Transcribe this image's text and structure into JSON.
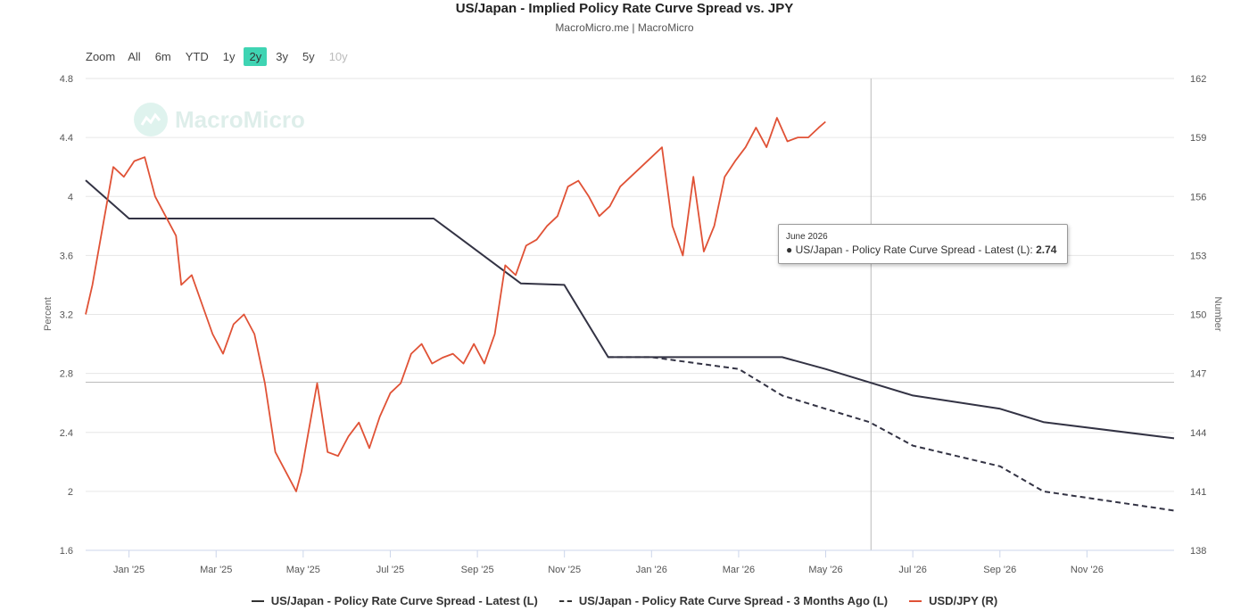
{
  "header": {
    "title": "US/Japan - Implied Policy Rate Curve Spread vs. JPY",
    "subtitle": "MacroMicro.me | MacroMicro"
  },
  "zoom": {
    "label": "Zoom",
    "buttons": [
      "All",
      "6m",
      "YTD",
      "1y",
      "2y",
      "3y",
      "5y",
      "10y"
    ],
    "active": "2y",
    "disabled": [
      "10y"
    ]
  },
  "watermark": {
    "text": "MacroMicro"
  },
  "tooltip": {
    "date": "June 2026",
    "series": "US/Japan - Policy Rate Curve Spread - Latest (L):",
    "value": "2.74"
  },
  "legend": [
    {
      "label": "US/Japan - Policy Rate Curve Spread - Latest (L)",
      "style": "solid",
      "color": "#333344"
    },
    {
      "label": "US/Japan - Policy Rate Curve Spread - 3 Months Ago (L)",
      "style": "dashed",
      "color": "#333344"
    },
    {
      "label": "USD/JPY (R)",
      "style": "solid",
      "color": "#e05236"
    }
  ],
  "chart_data": {
    "type": "line",
    "title": "US/Japan - Implied Policy Rate Curve Spread vs. JPY",
    "x_range": [
      2024.917,
      2027.0
    ],
    "x_ticks": [
      {
        "label": "Jan '25",
        "x": 2025.0
      },
      {
        "label": "Mar '25",
        "x": 2025.1667
      },
      {
        "label": "May '25",
        "x": 2025.3333
      },
      {
        "label": "Jul '25",
        "x": 2025.5
      },
      {
        "label": "Sep '25",
        "x": 2025.6667
      },
      {
        "label": "Nov '25",
        "x": 2025.8333
      },
      {
        "label": "Jan '26",
        "x": 2026.0
      },
      {
        "label": "Mar '26",
        "x": 2026.1667
      },
      {
        "label": "May '26",
        "x": 2026.3333
      },
      {
        "label": "Jul '26",
        "x": 2026.5
      },
      {
        "label": "Sep '26",
        "x": 2026.6667
      },
      {
        "label": "Nov '26",
        "x": 2026.8333
      }
    ],
    "y_left": {
      "label": "Percent",
      "range": [
        1.6,
        4.8
      ],
      "ticks": [
        "1.6",
        "2",
        "2.4",
        "2.8",
        "3.2",
        "3.6",
        "4",
        "4.4",
        "4.8"
      ]
    },
    "y_right": {
      "label": "Number",
      "range": [
        138,
        162
      ],
      "ticks": [
        "138",
        "141",
        "144",
        "147",
        "150",
        "153",
        "156",
        "159",
        "162"
      ]
    },
    "crosshair": {
      "x": 2026.42,
      "y": 2.74
    },
    "series": [
      {
        "name": "US/Japan - Policy Rate Curve Spread - Latest (L)",
        "axis": "left",
        "style": "solid",
        "color": "#333344",
        "x": [
          2024.917,
          2025.0,
          2025.333,
          2025.583,
          2025.75,
          2025.833,
          2025.917,
          2026.0,
          2026.25,
          2026.333,
          2026.5,
          2026.667,
          2026.75,
          2027.0
        ],
        "y": [
          4.11,
          3.85,
          3.85,
          3.85,
          3.41,
          3.4,
          2.91,
          2.91,
          2.91,
          2.83,
          2.65,
          2.56,
          2.47,
          2.36
        ]
      },
      {
        "name": "US/Japan - Policy Rate Curve Spread - 3 Months Ago (L)",
        "axis": "left",
        "style": "dashed",
        "color": "#333344",
        "x": [
          2025.917,
          2026.0,
          2026.167,
          2026.25,
          2026.333,
          2026.417,
          2026.5,
          2026.667,
          2026.75,
          2027.0
        ],
        "y": [
          2.91,
          2.91,
          2.83,
          2.65,
          2.56,
          2.47,
          2.31,
          2.17,
          2.0,
          1.87
        ]
      },
      {
        "name": "USD/JPY (R)",
        "axis": "right",
        "style": "solid",
        "color": "#e05236",
        "x": [
          2024.917,
          2024.93,
          2024.95,
          2024.97,
          2024.99,
          2025.01,
          2025.03,
          2025.05,
          2025.07,
          2025.09,
          2025.1,
          2025.12,
          2025.14,
          2025.16,
          2025.18,
          2025.2,
          2025.22,
          2025.24,
          2025.26,
          2025.28,
          2025.3,
          2025.31,
          2025.32,
          2025.33,
          2025.34,
          2025.36,
          2025.38,
          2025.4,
          2025.42,
          2025.44,
          2025.46,
          2025.48,
          2025.5,
          2025.52,
          2025.54,
          2025.56,
          2025.58,
          2025.6,
          2025.62,
          2025.64,
          2025.66,
          2025.68,
          2025.7,
          2025.72,
          2025.74,
          2025.76,
          2025.78,
          2025.8,
          2025.82,
          2025.84,
          2025.86,
          2025.88,
          2025.9,
          2025.92,
          2025.94,
          2025.96,
          2025.98,
          2026.0,
          2026.02,
          2026.04,
          2026.06,
          2026.07,
          2026.08,
          2026.1,
          2026.12,
          2026.14,
          2026.16,
          2026.18,
          2026.2,
          2026.22,
          2026.24,
          2026.26,
          2026.28,
          2026.3,
          2026.32,
          2026.333
        ],
        "y": [
          150.0,
          151.5,
          154.5,
          157.5,
          157.0,
          157.8,
          158.0,
          156.0,
          155.0,
          154.0,
          151.5,
          152.0,
          150.5,
          149.0,
          148.0,
          149.5,
          150.0,
          149.0,
          146.5,
          143.0,
          142.0,
          141.5,
          141.0,
          142.0,
          143.5,
          146.5,
          143.0,
          142.8,
          143.8,
          144.5,
          143.2,
          144.8,
          146.0,
          146.5,
          148.0,
          148.5,
          147.5,
          147.8,
          148.0,
          147.5,
          148.5,
          147.5,
          149.0,
          152.5,
          152.0,
          153.5,
          153.8,
          154.5,
          155.0,
          156.5,
          156.8,
          156.0,
          155.0,
          155.5,
          156.5,
          157.0,
          157.5,
          158.0,
          158.5,
          154.5,
          153.0,
          155.0,
          157.0,
          153.2,
          154.5,
          157.0,
          157.8,
          158.5,
          159.5,
          158.5,
          160.0,
          158.8,
          159.0,
          159.0,
          159.5,
          159.8
        ]
      }
    ]
  }
}
